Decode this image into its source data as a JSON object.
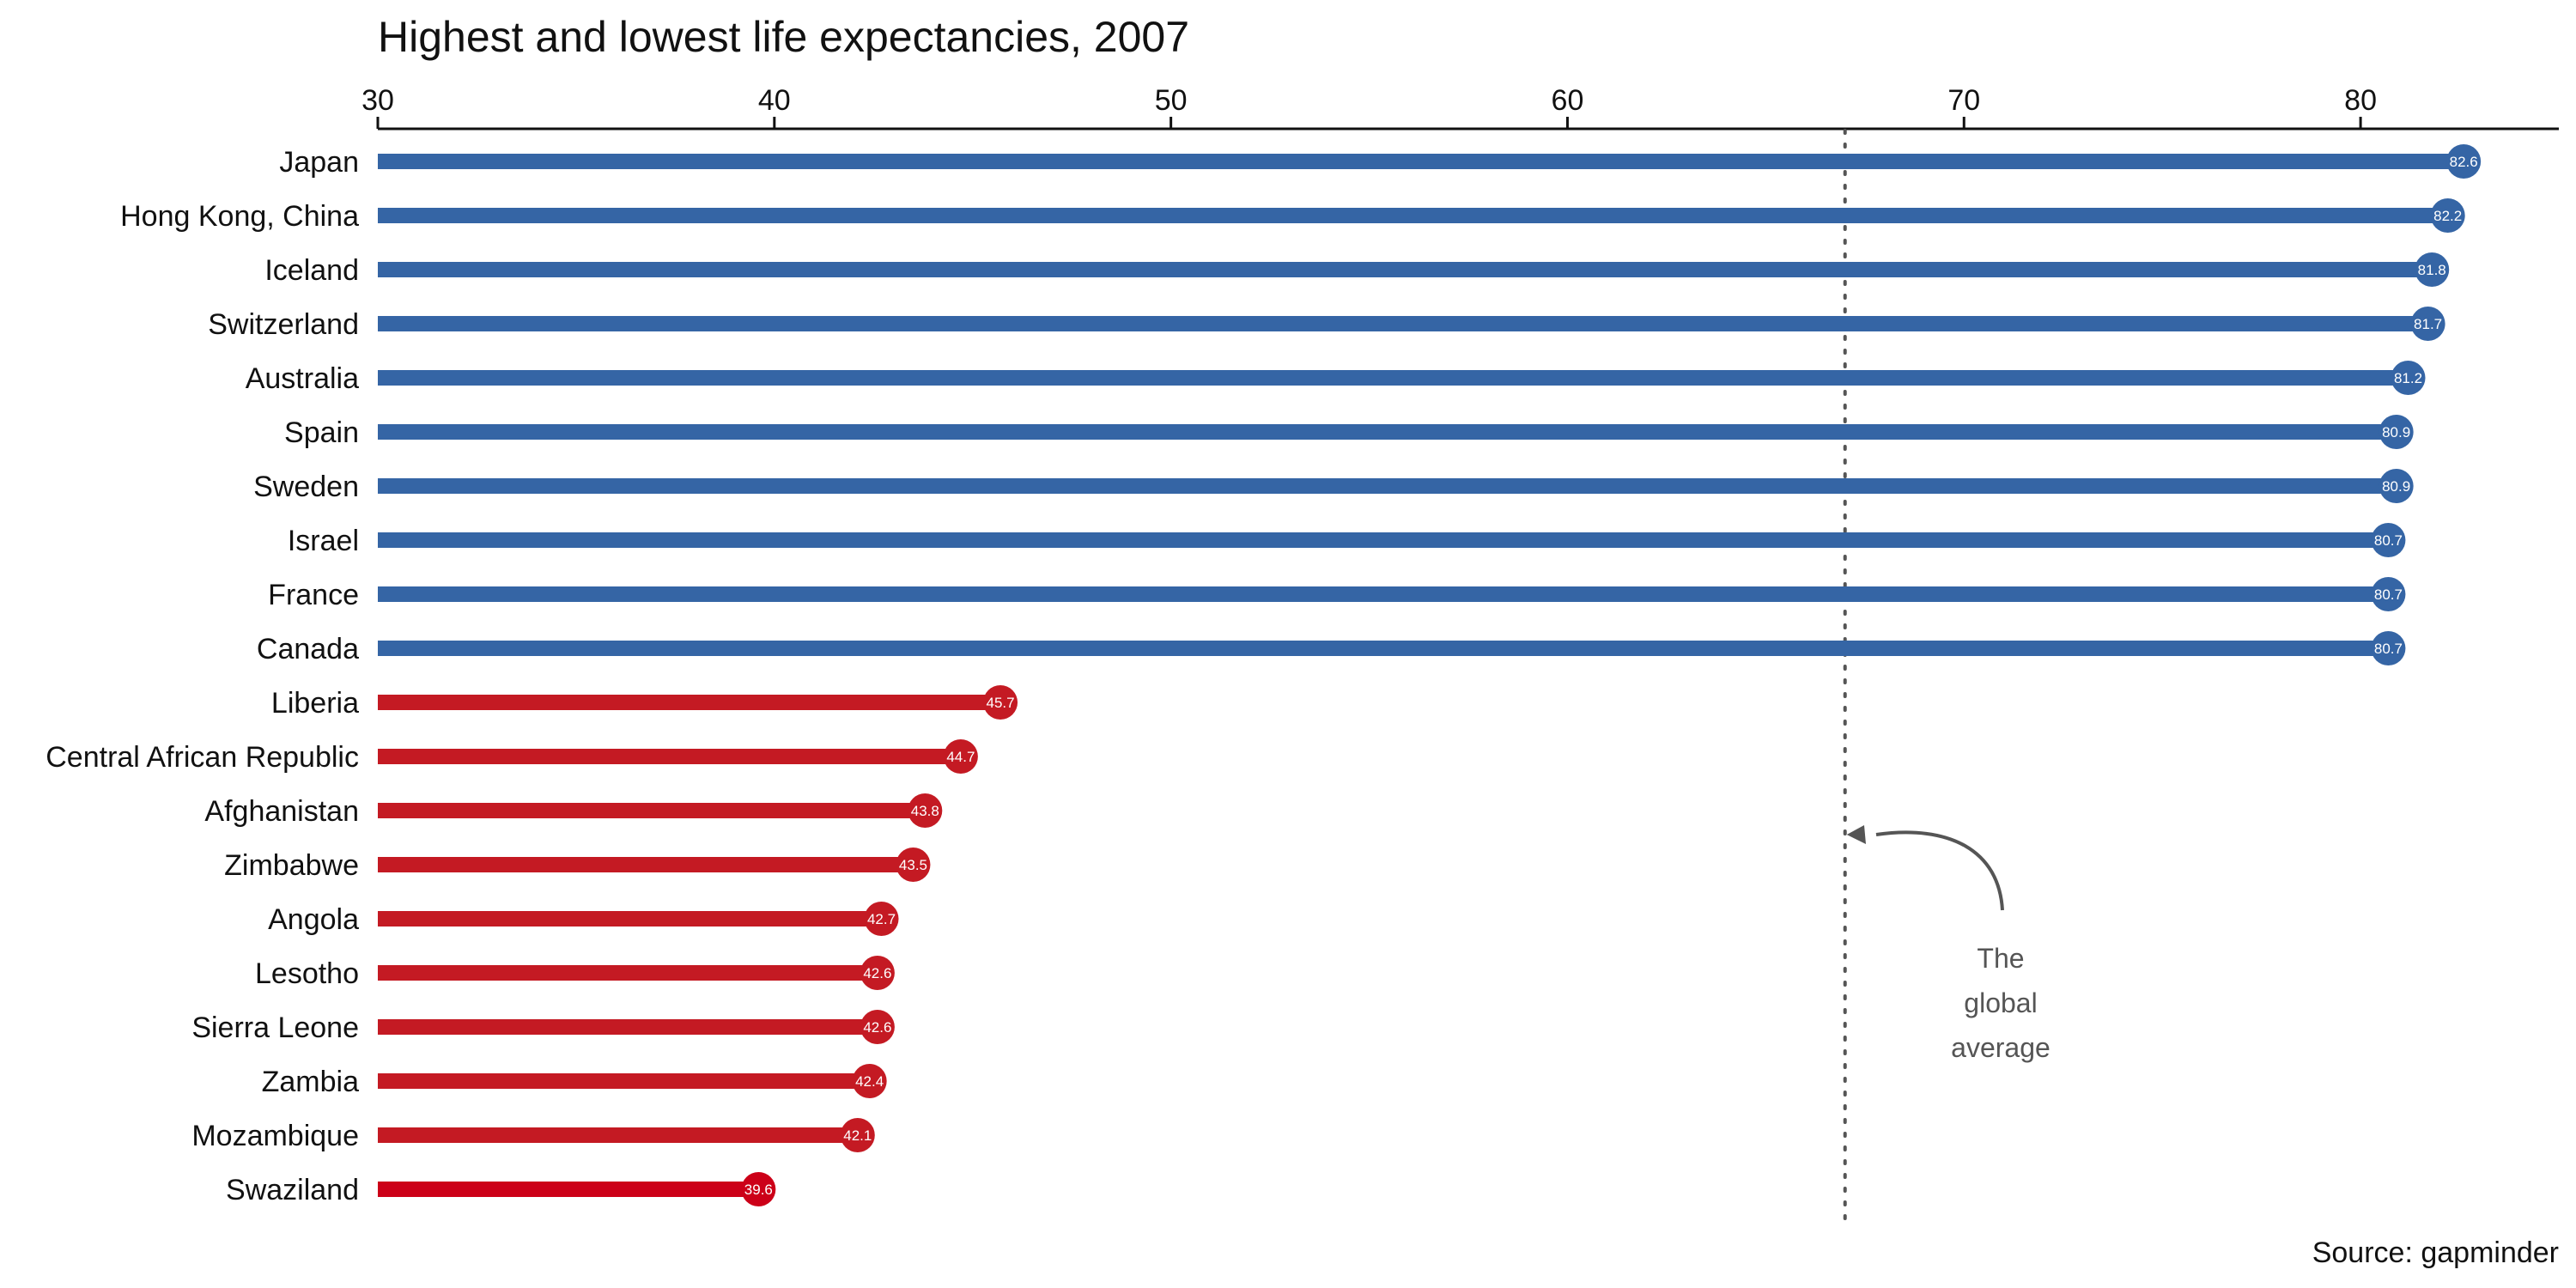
{
  "chart_data": {
    "type": "lollipop",
    "title": "Highest and lowest life expectancies, 2007",
    "source": "Source: gapminder",
    "xlim": [
      30,
      85
    ],
    "x_ticks": [
      30,
      40,
      50,
      60,
      70,
      80
    ],
    "x_axis_position": "top",
    "grid": false,
    "reference_line": {
      "value": 67.0,
      "style": "dotted",
      "label": [
        "The",
        "global",
        "average"
      ]
    },
    "colors": {
      "high": "#3565a5",
      "low": "#c41a23",
      "lowest": "#cc0018",
      "reference": "#555555"
    },
    "categories": [
      "Japan",
      "Hong Kong, China",
      "Iceland",
      "Switzerland",
      "Australia",
      "Spain",
      "Sweden",
      "Israel",
      "France",
      "Canada",
      "Liberia",
      "Central African Republic",
      "Afghanistan",
      "Zimbabwe",
      "Angola",
      "Lesotho",
      "Sierra Leone",
      "Zambia",
      "Mozambique",
      "Swaziland"
    ],
    "values": [
      82.6,
      82.2,
      81.8,
      81.7,
      81.2,
      80.9,
      80.9,
      80.7,
      80.7,
      80.7,
      45.7,
      44.7,
      43.8,
      43.5,
      42.7,
      42.6,
      42.6,
      42.4,
      42.1,
      39.6
    ],
    "value_labels": [
      "82.6",
      "82.2",
      "81.8",
      "81.7",
      "81.2",
      "80.9",
      "80.9",
      "80.7",
      "80.7",
      "80.7",
      "45.7",
      "44.7",
      "43.8",
      "43.5",
      "42.7",
      "42.6",
      "42.6",
      "42.4",
      "42.1",
      "39.6"
    ],
    "groups": [
      "high",
      "high",
      "high",
      "high",
      "high",
      "high",
      "high",
      "high",
      "high",
      "high",
      "low",
      "low",
      "low",
      "low",
      "low",
      "low",
      "low",
      "low",
      "low",
      "lowest"
    ]
  }
}
